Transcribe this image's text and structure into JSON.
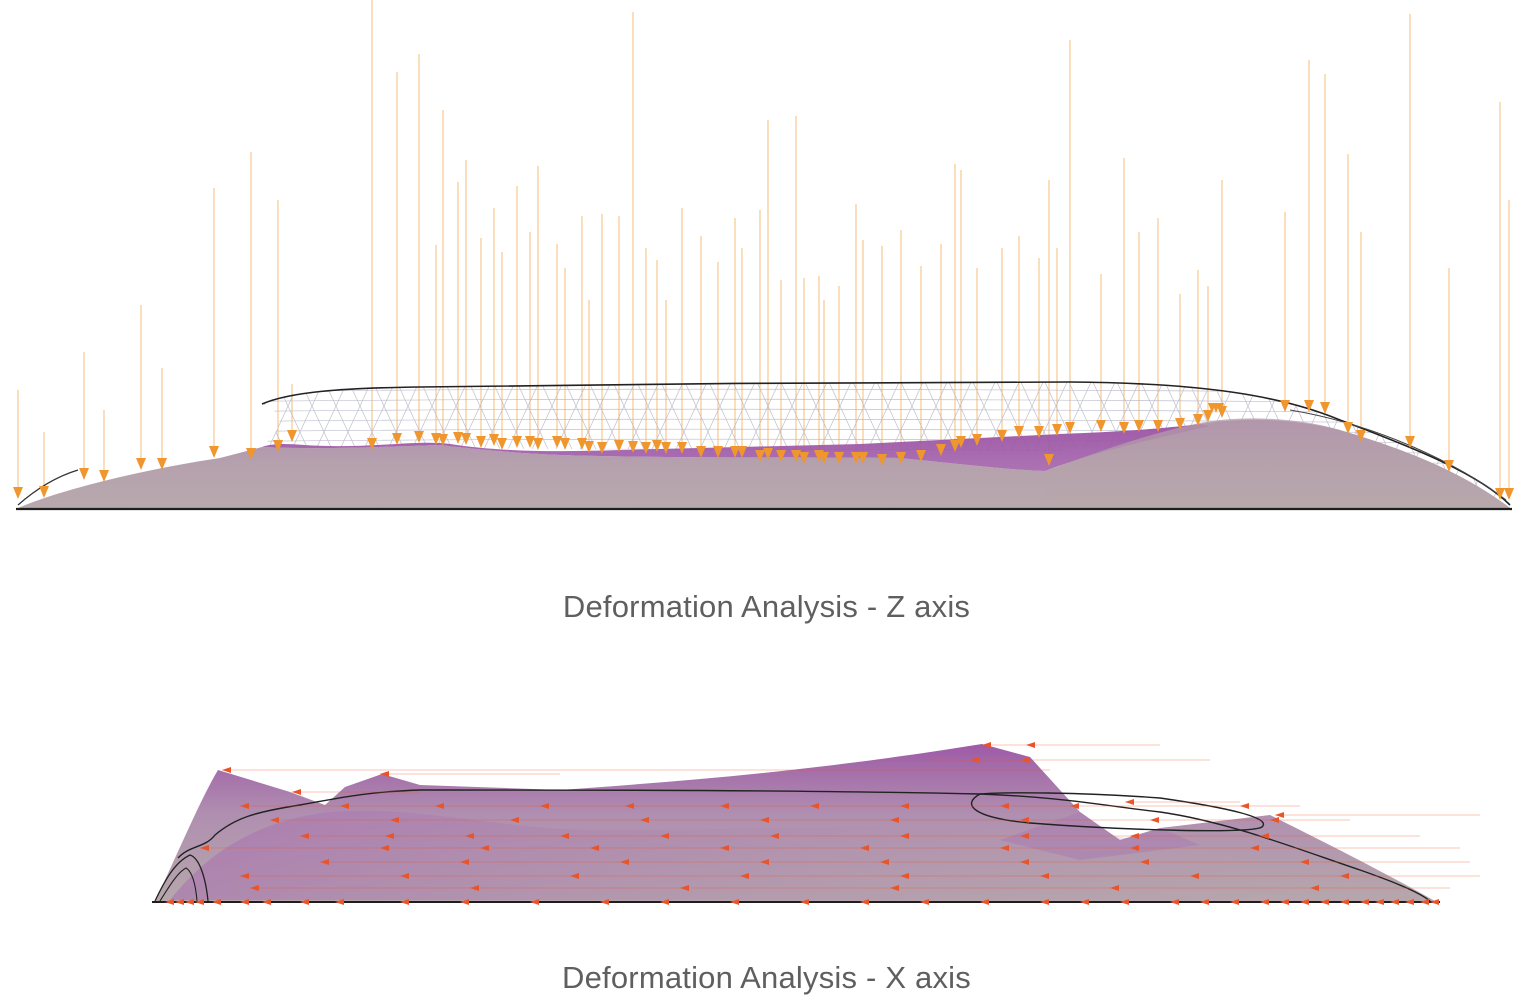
{
  "captions": {
    "z_axis": "Deformation Analysis - Z axis",
    "x_axis": "Deformation Analysis - X axis"
  },
  "colors": {
    "background": "#ffffff",
    "caption_text": "#5f5f5f",
    "deformed_surface_light": "#b7a4ae",
    "deformed_surface_purple": "#9c4fa3",
    "load_arrow_z": "#f0962e",
    "load_arrow_x": "#e8552a",
    "mesh_line": "#b9b9c9",
    "outline": "#222222"
  },
  "icons": {
    "z_load": "down-triangle-arrow",
    "x_load": "left-triangle-arrow"
  }
}
